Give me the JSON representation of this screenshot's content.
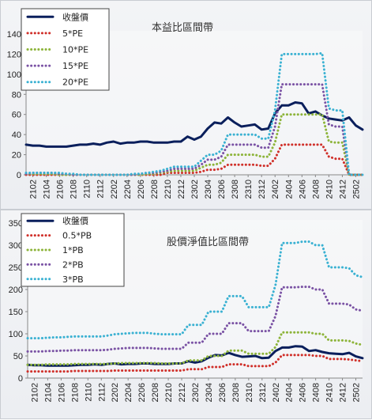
{
  "chart_data": [
    {
      "type": "line",
      "title": "本益比區間帶",
      "x": [
        "2101",
        "2102",
        "2103",
        "2104",
        "2105",
        "2106",
        "2107",
        "2108",
        "2109",
        "2110",
        "2111",
        "2112",
        "2201",
        "2202",
        "2203",
        "2204",
        "2205",
        "2206",
        "2207",
        "2208",
        "2209",
        "2210",
        "2211",
        "2212",
        "2301",
        "2302",
        "2303",
        "2304",
        "2305",
        "2306",
        "2307",
        "2308",
        "2309",
        "2310",
        "2311",
        "2312",
        "2401",
        "2402",
        "2403",
        "2404",
        "2405",
        "2406",
        "2407",
        "2408",
        "2409",
        "2410",
        "2411",
        "2412",
        "2501",
        "2502",
        "2503"
      ],
      "xticks": [
        "2102",
        "2104",
        "2106",
        "2108",
        "2110",
        "2112",
        "2202",
        "2204",
        "2206",
        "2208",
        "2210",
        "2212",
        "2302",
        "2304",
        "2306",
        "2308",
        "2310",
        "2312",
        "2402",
        "2404",
        "2406",
        "2408",
        "2410",
        "2412",
        "2502"
      ],
      "yticks": [
        "0",
        "20",
        "40",
        "60",
        "80",
        "100",
        "120",
        "140"
      ],
      "ylim": [
        0,
        140
      ],
      "legend_position": "top-left",
      "series": [
        {
          "name": "收盤價",
          "color": "#0a1f5c",
          "style": "solid",
          "values": [
            30,
            29,
            29,
            28,
            28,
            28,
            28,
            29,
            30,
            30,
            31,
            30,
            32,
            33,
            31,
            32,
            32,
            33,
            33,
            32,
            32,
            32,
            33,
            33,
            38,
            35,
            38,
            46,
            52,
            51,
            57,
            52,
            48,
            49,
            50,
            45,
            46,
            61,
            69,
            69,
            72,
            71,
            61,
            63,
            59,
            56,
            55,
            54,
            57,
            49,
            45
          ]
        },
        {
          "name": "5*PE",
          "color": "#d0302a",
          "style": "dotted",
          "values": [
            0,
            0,
            0,
            0,
            0,
            0,
            0,
            0,
            0,
            0,
            0,
            0,
            0,
            0,
            0,
            0,
            0,
            0,
            0,
            0,
            0,
            2,
            2,
            2,
            2,
            2,
            3,
            5,
            5,
            6,
            10,
            10,
            10,
            10,
            10,
            9,
            9,
            16,
            30,
            30,
            30,
            30,
            30,
            30,
            30,
            18,
            16,
            16,
            0,
            0,
            0
          ]
        },
        {
          "name": "10*PE",
          "color": "#8db43a",
          "style": "dotted",
          "values": [
            1,
            1,
            1,
            1,
            1,
            0,
            0,
            0,
            0,
            0,
            0,
            0,
            0,
            0,
            0,
            0,
            0,
            0,
            1,
            1,
            2,
            3,
            4,
            4,
            4,
            4,
            7,
            10,
            10,
            12,
            20,
            20,
            20,
            20,
            20,
            18,
            18,
            32,
            60,
            60,
            60,
            60,
            60,
            60,
            60,
            33,
            32,
            32,
            0,
            0,
            0
          ]
        },
        {
          "name": "15*PE",
          "color": "#7a52a4",
          "style": "dotted",
          "values": [
            1,
            2,
            2,
            2,
            2,
            1,
            1,
            0,
            0,
            0,
            0,
            0,
            0,
            0,
            0,
            0,
            0,
            1,
            2,
            2,
            3,
            4,
            6,
            6,
            6,
            6,
            10,
            15,
            15,
            18,
            30,
            30,
            30,
            30,
            30,
            27,
            27,
            48,
            90,
            90,
            90,
            90,
            90,
            90,
            90,
            50,
            48,
            48,
            0,
            0,
            0
          ]
        },
        {
          "name": "20*PE",
          "color": "#3ab1d2",
          "style": "dotted",
          "values": [
            2,
            2,
            2,
            2,
            2,
            2,
            1,
            1,
            0,
            0,
            0,
            0,
            0,
            0,
            0,
            0,
            1,
            1,
            2,
            3,
            4,
            6,
            8,
            8,
            8,
            8,
            14,
            20,
            20,
            24,
            40,
            40,
            40,
            40,
            40,
            36,
            36,
            64,
            120,
            120,
            120,
            120,
            120,
            120,
            121,
            66,
            64,
            64,
            0,
            0,
            0
          ]
        }
      ]
    },
    {
      "type": "line",
      "title": "股價淨值比區間帶",
      "x": [
        "2101",
        "2102",
        "2103",
        "2104",
        "2105",
        "2106",
        "2107",
        "2108",
        "2109",
        "2110",
        "2111",
        "2112",
        "2201",
        "2202",
        "2203",
        "2204",
        "2205",
        "2206",
        "2207",
        "2208",
        "2209",
        "2210",
        "2211",
        "2212",
        "2301",
        "2302",
        "2303",
        "2304",
        "2305",
        "2306",
        "2307",
        "2308",
        "2309",
        "2310",
        "2311",
        "2312",
        "2401",
        "2402",
        "2403",
        "2404",
        "2405",
        "2406",
        "2407",
        "2408",
        "2409",
        "2410",
        "2411",
        "2412",
        "2501",
        "2502",
        "2503"
      ],
      "xticks": [
        "2102",
        "2104",
        "2106",
        "2108",
        "2110",
        "2112",
        "2202",
        "2204",
        "2206",
        "2208",
        "2210",
        "2212",
        "2302",
        "2304",
        "2306",
        "2308",
        "2310",
        "2312",
        "2402",
        "2404",
        "2406",
        "2408",
        "2410",
        "2412",
        "2502"
      ],
      "yticks": [
        "0",
        "50",
        "100",
        "150",
        "200",
        "250",
        "300",
        "350"
      ],
      "ylim": [
        0,
        350
      ],
      "legend_position": "top-left",
      "series": [
        {
          "name": "收盤價",
          "color": "#0a1f5c",
          "style": "solid",
          "values": [
            30,
            29,
            29,
            28,
            28,
            28,
            28,
            29,
            30,
            30,
            31,
            30,
            32,
            33,
            31,
            32,
            32,
            33,
            33,
            32,
            32,
            32,
            33,
            33,
            38,
            35,
            38,
            46,
            52,
            51,
            57,
            52,
            48,
            49,
            50,
            45,
            46,
            61,
            69,
            69,
            72,
            71,
            61,
            63,
            59,
            56,
            55,
            54,
            57,
            49,
            45
          ]
        },
        {
          "name": "0.5*PB",
          "color": "#d0302a",
          "style": "dotted",
          "values": [
            15,
            15,
            15,
            15,
            15,
            15,
            15,
            16,
            16,
            16,
            16,
            16,
            16,
            17,
            17,
            17,
            17,
            17,
            17,
            17,
            17,
            17,
            17,
            17,
            20,
            20,
            20,
            25,
            25,
            25,
            31,
            31,
            31,
            27,
            27,
            27,
            27,
            35,
            52,
            52,
            52,
            52,
            52,
            50,
            50,
            43,
            43,
            43,
            42,
            40,
            38
          ]
        },
        {
          "name": "1*PB",
          "color": "#8db43a",
          "style": "dotted",
          "values": [
            30,
            30,
            30,
            31,
            31,
            31,
            31,
            32,
            32,
            32,
            32,
            32,
            32,
            33,
            34,
            34,
            34,
            34,
            34,
            34,
            33,
            33,
            33,
            33,
            40,
            40,
            40,
            50,
            50,
            50,
            62,
            62,
            62,
            55,
            55,
            55,
            55,
            70,
            103,
            103,
            103,
            103,
            103,
            100,
            100,
            85,
            85,
            85,
            84,
            78,
            75
          ]
        },
        {
          "name": "2*PB",
          "color": "#7a52a4",
          "style": "dotted",
          "values": [
            60,
            60,
            60,
            61,
            61,
            62,
            62,
            63,
            63,
            63,
            63,
            63,
            64,
            66,
            67,
            68,
            68,
            68,
            68,
            67,
            66,
            66,
            66,
            66,
            80,
            80,
            80,
            100,
            100,
            100,
            124,
            124,
            124,
            106,
            106,
            106,
            106,
            140,
            205,
            205,
            205,
            206,
            206,
            200,
            200,
            168,
            168,
            168,
            166,
            155,
            152
          ]
        },
        {
          "name": "3*PB",
          "color": "#3ab1d2",
          "style": "dotted",
          "values": [
            90,
            90,
            90,
            91,
            92,
            92,
            93,
            94,
            94,
            94,
            94,
            94,
            96,
            99,
            100,
            101,
            102,
            102,
            102,
            100,
            99,
            99,
            99,
            99,
            120,
            120,
            120,
            150,
            150,
            150,
            185,
            185,
            185,
            160,
            160,
            160,
            160,
            210,
            305,
            305,
            305,
            308,
            308,
            300,
            300,
            250,
            250,
            250,
            248,
            232,
            228
          ]
        }
      ]
    }
  ]
}
